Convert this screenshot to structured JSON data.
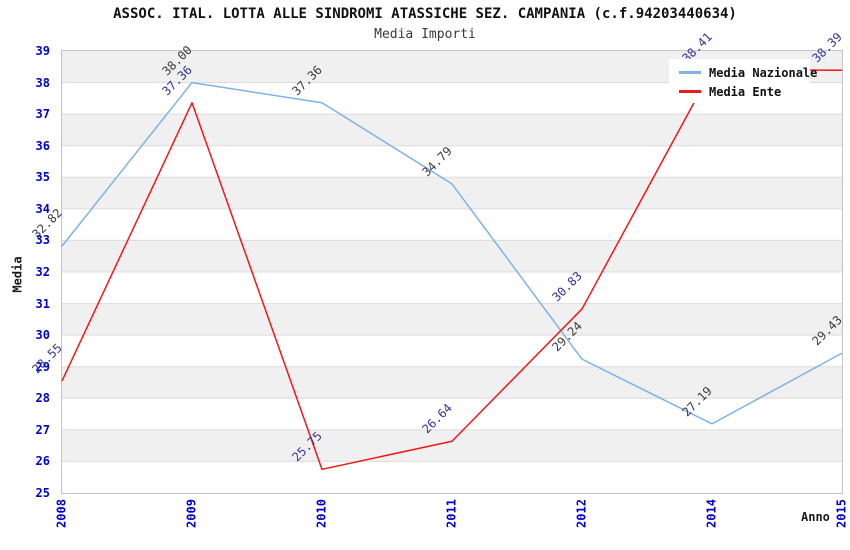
{
  "header": {
    "title": "ASSOC. ITAL. LOTTA ALLE SINDROMI ATASSICHE SEZ. CAMPANIA (c.f.94203440634)",
    "subtitle": "Media Importi"
  },
  "axes": {
    "y_title": "Media",
    "x_title": "Anno",
    "tick_color": "#0000CD"
  },
  "legend": {
    "position": "top-right"
  },
  "colors": {
    "band_white": "#ffffff",
    "band_gray": "#f0f0f0",
    "gridline": "#dcdcdc",
    "frame": "#c4c4c4"
  },
  "chart_data": {
    "type": "line",
    "title": "ASSOC. ITAL. LOTTA ALLE SINDROMI ATASSICHE SEZ. CAMPANIA (c.f.94203440634)",
    "subtitle": "Media Importi",
    "categories": [
      "2008",
      "2009",
      "2010",
      "2011",
      "2012",
      "2014",
      "2015"
    ],
    "series": [
      {
        "name": "Media Nazionale",
        "color": "#7FB2E5",
        "label_color": "#3C3C3C",
        "values": [
          32.82,
          38.0,
          37.36,
          34.79,
          29.24,
          27.19,
          29.43
        ],
        "labels": [
          "32.82",
          "38.00",
          "37.36",
          "34.79",
          "29.24",
          "27.19",
          "29.43"
        ]
      },
      {
        "name": "Media Ente",
        "color": "#F01818",
        "label_color": "#333399",
        "values": [
          28.55,
          37.36,
          25.75,
          26.64,
          30.83,
          38.41,
          38.39
        ],
        "labels": [
          "28.55",
          "37.36",
          "25.75",
          "26.64",
          "30.83",
          "38.41",
          "38.39"
        ]
      }
    ],
    "xlabel": "Anno",
    "ylabel": "Media",
    "ylim": [
      25,
      39
    ],
    "y_tick_step": 1,
    "grid": true,
    "background_bands": true,
    "legend_position": "top-right"
  }
}
